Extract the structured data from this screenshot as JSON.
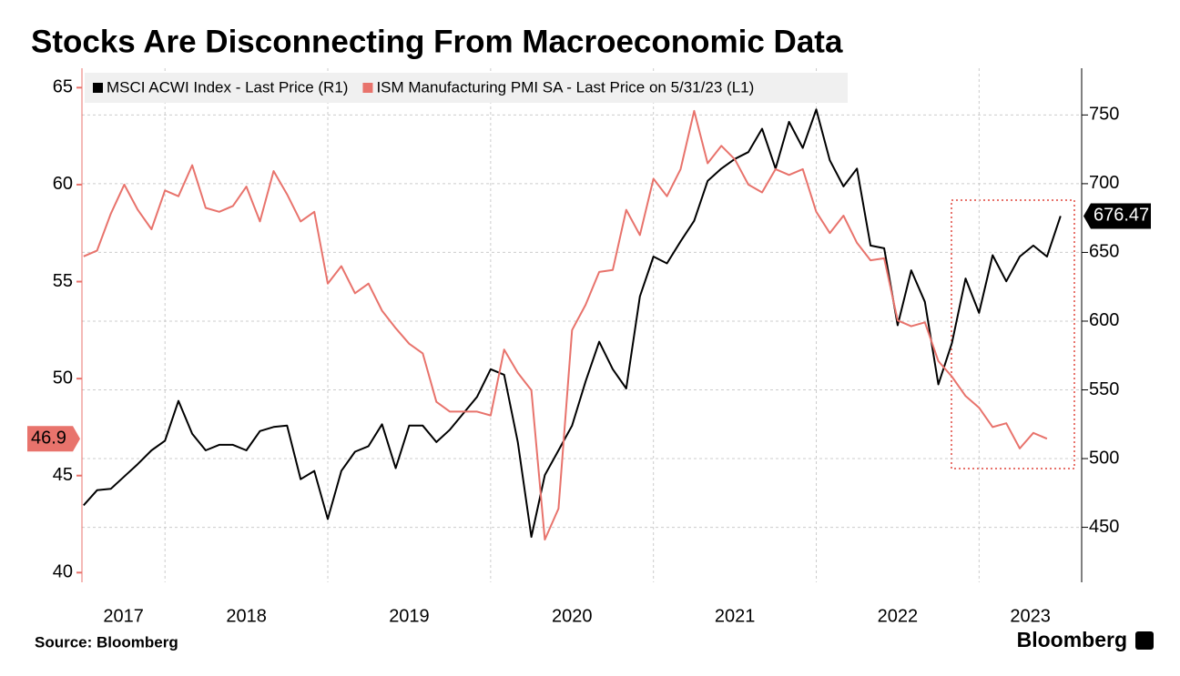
{
  "chart_data": {
    "type": "line",
    "title": "Stocks Are Disconnecting From Macroeconomic Data",
    "source": "Source: Bloomberg",
    "brand": "Bloomberg",
    "x": [
      2017.5,
      2017.583,
      2017.667,
      2017.75,
      2017.833,
      2017.917,
      2018,
      2018.083,
      2018.167,
      2018.25,
      2018.333,
      2018.417,
      2018.5,
      2018.583,
      2018.667,
      2018.75,
      2018.833,
      2018.917,
      2019,
      2019.083,
      2019.167,
      2019.25,
      2019.333,
      2019.417,
      2019.5,
      2019.583,
      2019.667,
      2019.75,
      2019.833,
      2019.917,
      2020,
      2020.083,
      2020.167,
      2020.25,
      2020.333,
      2020.417,
      2020.5,
      2020.583,
      2020.667,
      2020.75,
      2020.833,
      2020.917,
      2021,
      2021.083,
      2021.167,
      2021.25,
      2021.333,
      2021.417,
      2021.5,
      2021.583,
      2021.667,
      2021.75,
      2021.833,
      2021.917,
      2022,
      2022.083,
      2022.167,
      2022.25,
      2022.333,
      2022.417,
      2022.5,
      2022.583,
      2022.667,
      2022.75,
      2022.833,
      2022.917,
      2023,
      2023.083,
      2023.167,
      2023.25,
      2023.333,
      2023.417,
      2023.5
    ],
    "series": [
      {
        "name": "MSCI ACWI Index - Last Price (R1)",
        "color": "#000000",
        "axis": "y2",
        "values": [
          466,
          477,
          478,
          487,
          496,
          506,
          513,
          542,
          518,
          506,
          510,
          510,
          506,
          520,
          523,
          524,
          485,
          491,
          456,
          491,
          505,
          509,
          525,
          493,
          524,
          524,
          512,
          521,
          533,
          545,
          565,
          561,
          512,
          443,
          488,
          506,
          524,
          556,
          585,
          565,
          551,
          618,
          647,
          642,
          658,
          673,
          702,
          711,
          718,
          723,
          740,
          711,
          745,
          726,
          754,
          717,
          698,
          711,
          655,
          653,
          597,
          637,
          614,
          554,
          584,
          631,
          606,
          648,
          629,
          647,
          655,
          647,
          676.47
        ]
      },
      {
        "name": "ISM Manufacturing PMI SA - Last Price on 5/31/23 (L1)",
        "color": "#e8736c",
        "values": [
          56.3,
          56.6,
          58.5,
          60.0,
          58.7,
          57.7,
          59.7,
          59.4,
          61.0,
          58.8,
          58.6,
          58.9,
          59.9,
          58.1,
          60.7,
          59.5,
          58.1,
          58.6,
          54.9,
          55.8,
          54.4,
          54.9,
          53.5,
          52.6,
          51.8,
          51.3,
          48.8,
          48.3,
          48.3,
          48.3,
          48.1,
          51.5,
          50.3,
          49.4,
          41.7,
          43.3,
          52.5,
          53.8,
          55.5,
          55.6,
          58.7,
          57.4,
          60.3,
          59.4,
          60.8,
          63.8,
          61.1,
          62.0,
          61.3,
          60.0,
          59.6,
          60.8,
          60.5,
          60.8,
          58.6,
          57.5,
          58.4,
          57.0,
          56.1,
          56.2,
          53.0,
          52.7,
          52.9,
          50.9,
          50.1,
          49.1,
          48.5,
          47.5,
          47.7,
          46.4,
          47.2,
          46.9,
          null
        ]
      }
    ],
    "xlim": [
      2017.49,
      2023.63
    ],
    "xticks": [
      2017,
      2018,
      2019,
      2020,
      2021,
      2022,
      2023
    ],
    "ylim": [
      39.5,
      66
    ],
    "yticks": [
      40,
      45,
      50,
      55,
      60,
      65
    ],
    "y2lim": [
      410,
      784
    ],
    "y2ticks": [
      450,
      500,
      550,
      600,
      650,
      700,
      750
    ],
    "grid": true
  }
}
